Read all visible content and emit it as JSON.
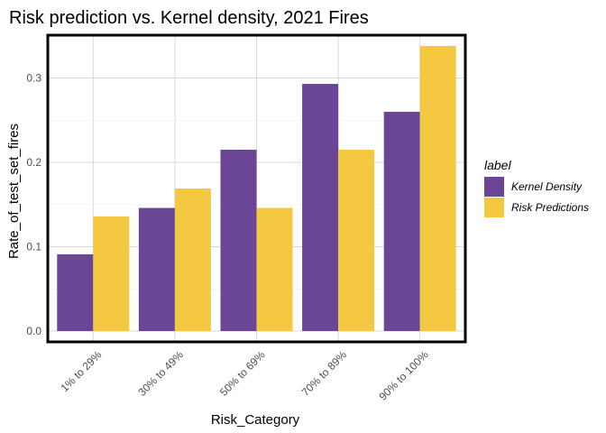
{
  "chart_data": {
    "type": "bar",
    "title": "Risk prediction vs. Kernel density, 2021 Fires",
    "xlabel": "Risk_Category",
    "ylabel": "Rate_of_test_set_fires",
    "categories": [
      "1% to 29%",
      "30% to 49%",
      "50% to 69%",
      "70% to 89%",
      "90% to 100%"
    ],
    "series": [
      {
        "name": "Kernel Density",
        "color": "#6b4596",
        "values": [
          0.091,
          0.146,
          0.215,
          0.293,
          0.26
        ]
      },
      {
        "name": "Risk Predictions",
        "color": "#f5c842",
        "values": [
          0.136,
          0.169,
          0.146,
          0.215,
          0.338
        ]
      }
    ],
    "ylim": [
      0,
      0.345
    ],
    "yticks": [
      0.0,
      0.1,
      0.2,
      0.3
    ],
    "ytick_labels": [
      "0.0",
      "0.1",
      "0.2",
      "0.3"
    ],
    "grid": true,
    "legend": {
      "title": "label",
      "position": "right"
    }
  }
}
